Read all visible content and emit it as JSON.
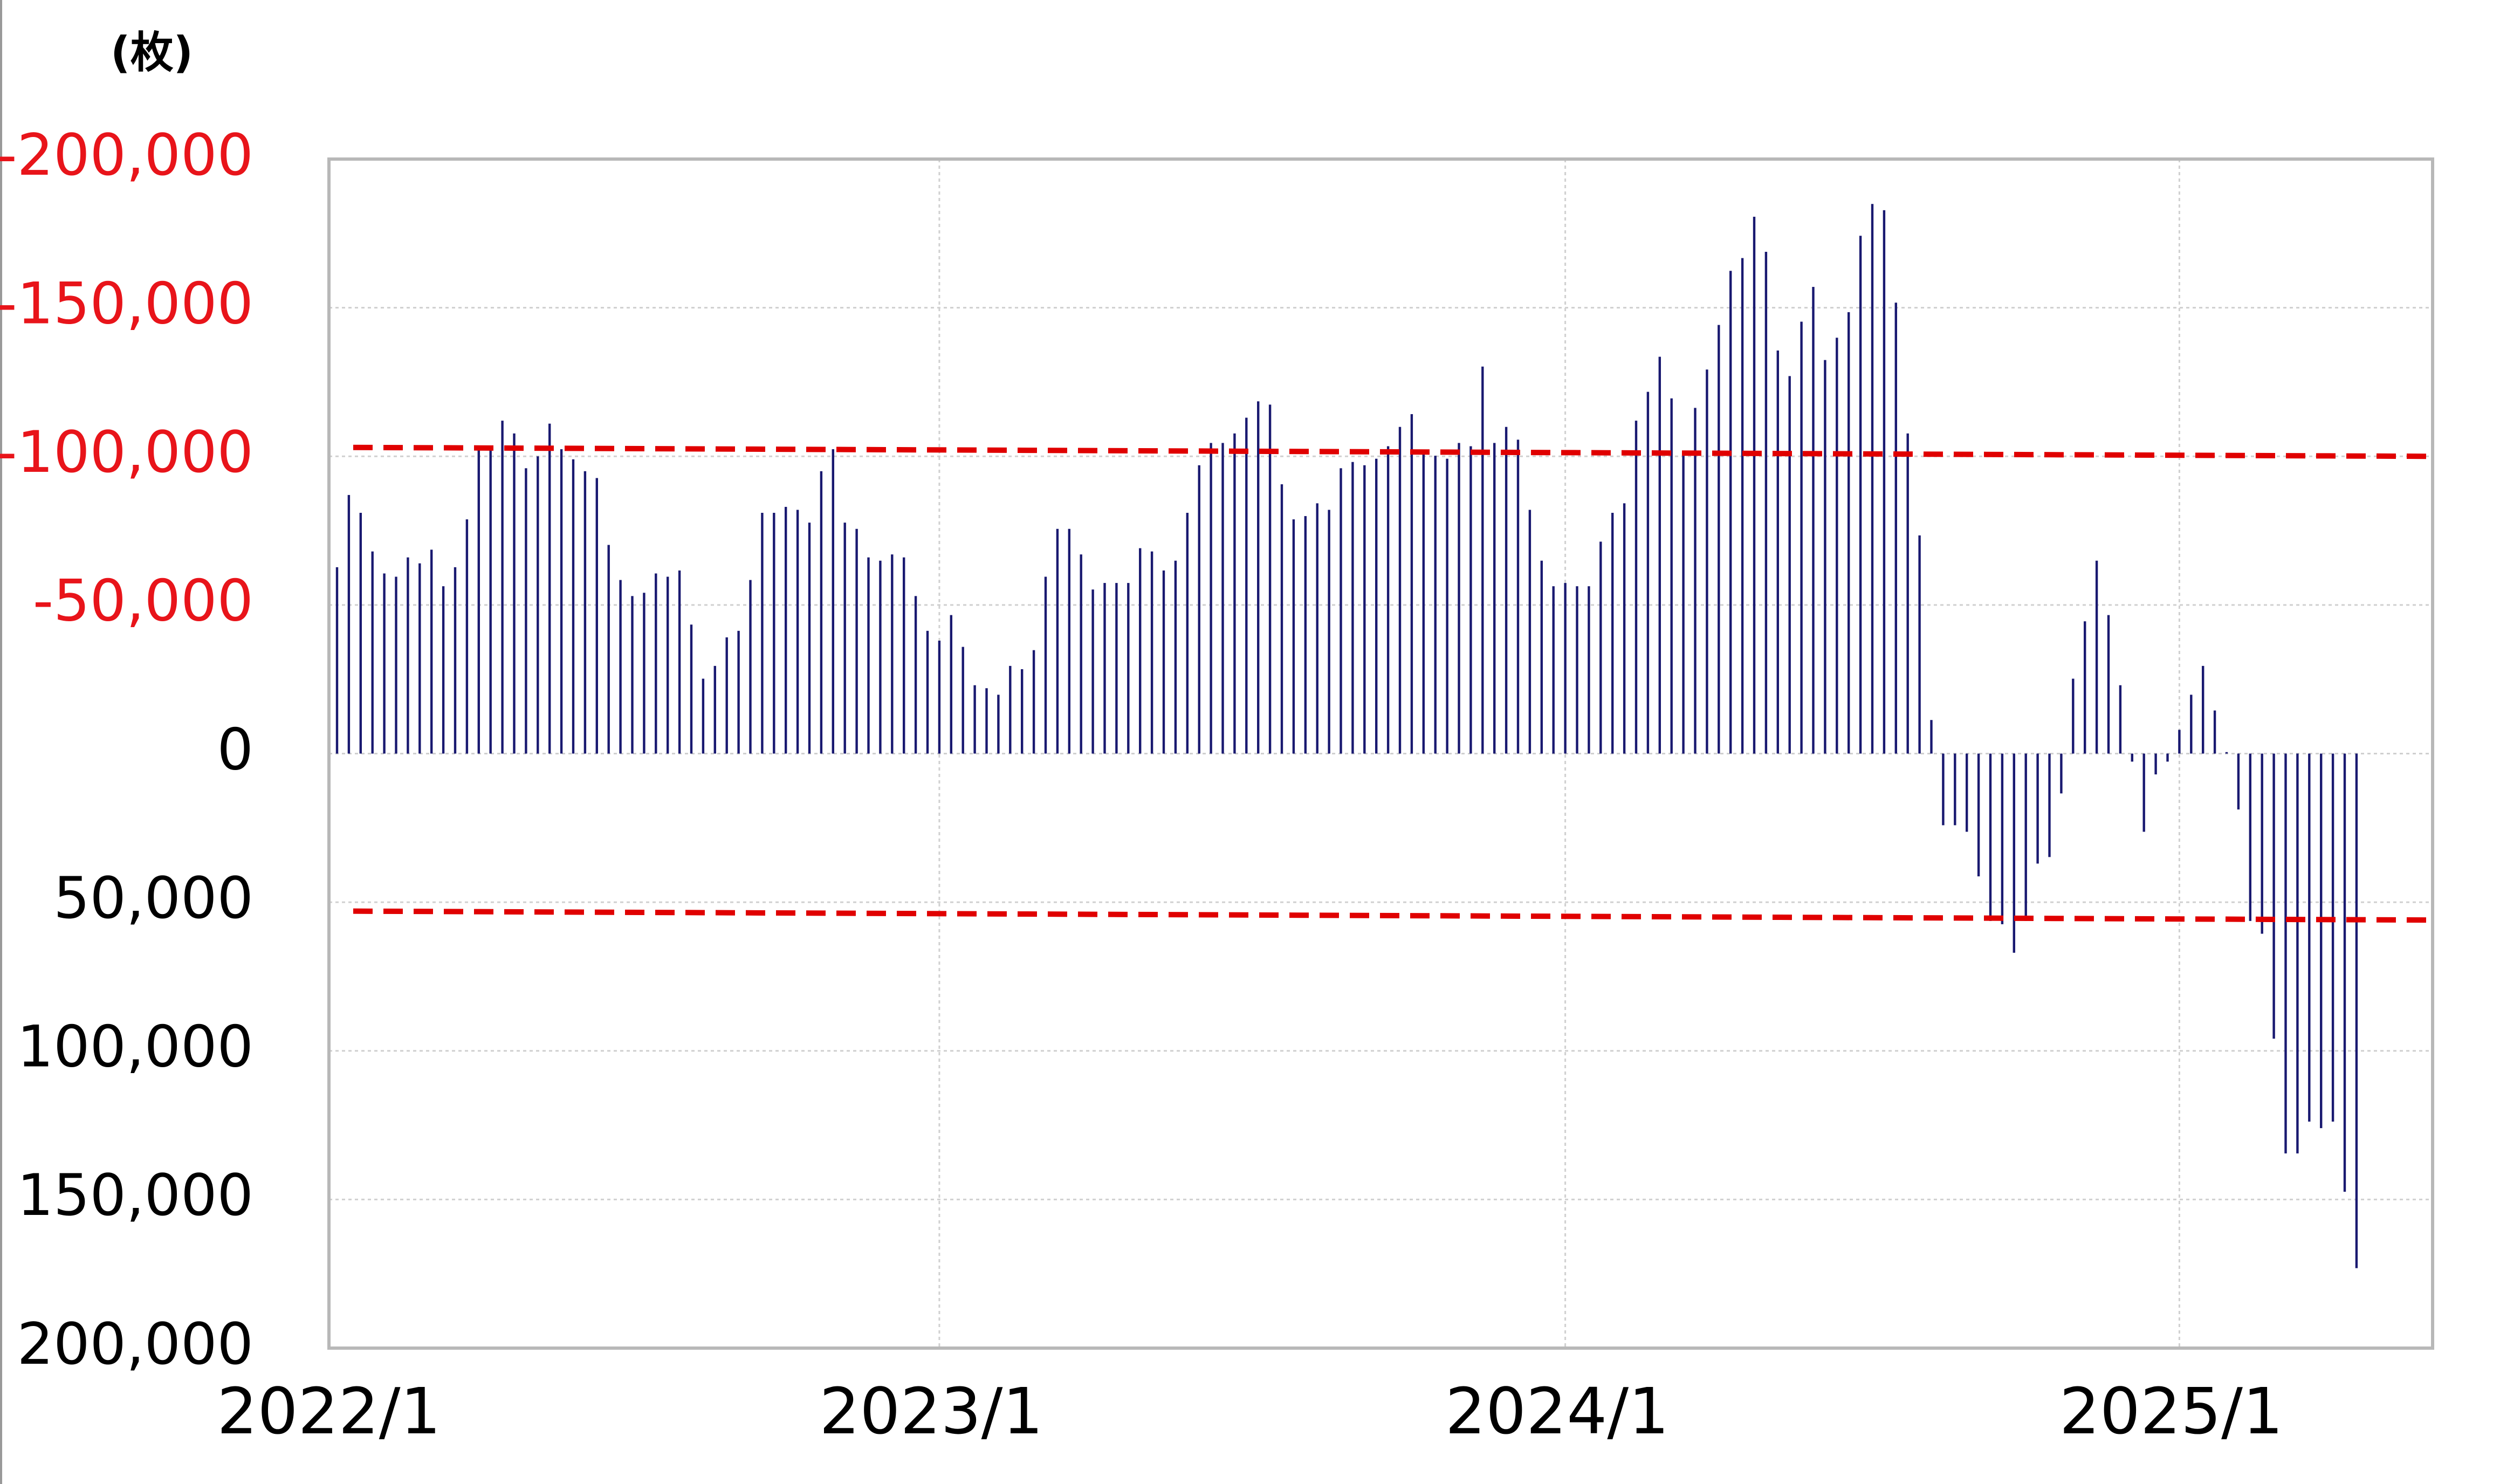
{
  "chart_data": {
    "type": "bar",
    "y_label": "(枚)",
    "color": "#191970",
    "grid": true,
    "label_color": "#000000",
    "negative_label_color": "#e8141a",
    "ylim": [
      -200000,
      200000
    ],
    "yticks": [
      {
        "value": -200000,
        "label": "-200,000"
      },
      {
        "value": -150000,
        "label": "-150,000"
      },
      {
        "value": -100000,
        "label": "-100,000"
      },
      {
        "value": -50000,
        "label": "-50,000"
      },
      0,
      {
        "value": 50000,
        "label": "50,000"
      },
      {
        "value": 100000,
        "label": "100,000"
      },
      {
        "value": 150000,
        "label": "150,000"
      },
      {
        "value": 200000,
        "label": "200,000"
      }
    ],
    "categories": [
      "2022/1",
      null,
      null,
      null,
      null,
      null,
      null,
      null,
      null,
      null,
      null,
      null,
      null,
      null,
      null,
      null,
      null,
      null,
      null,
      null,
      null,
      null,
      null,
      null,
      null,
      null,
      null,
      null,
      null,
      null,
      null,
      null,
      null,
      null,
      null,
      null,
      null,
      null,
      null,
      null,
      null,
      null,
      null,
      null,
      null,
      null,
      null,
      null,
      null,
      null,
      null,
      "2023/1",
      null,
      null,
      null,
      null,
      null,
      null,
      null,
      null,
      null,
      null,
      null,
      null,
      null,
      null,
      null,
      null,
      null,
      null,
      null,
      null,
      null,
      null,
      null,
      null,
      null,
      null,
      null,
      null,
      null,
      null,
      null,
      null,
      null,
      null,
      null,
      null,
      null,
      null,
      null,
      null,
      null,
      null,
      null,
      null,
      null,
      null,
      null,
      null,
      null,
      null,
      null,
      null,
      "2024/1",
      null,
      null,
      null,
      null,
      null,
      null,
      null,
      null,
      null,
      null,
      null,
      null,
      null,
      null,
      null,
      null,
      null,
      null,
      null,
      null,
      null,
      null,
      null,
      null,
      null,
      null,
      null,
      null,
      null,
      null,
      null,
      null,
      null,
      null,
      null,
      null,
      null,
      null,
      null,
      null,
      null,
      null,
      null,
      null,
      null,
      null,
      null,
      null,
      null,
      null,
      null,
      "2025/1",
      null,
      null,
      null,
      null,
      null,
      null,
      null,
      null,
      null,
      null,
      null,
      null,
      null,
      null,
      null
    ],
    "values": [
      -62700,
      -87000,
      -81000,
      -68000,
      -60600,
      -59500,
      -66000,
      -64000,
      -68600,
      -56300,
      -62700,
      -78800,
      -103400,
      -102400,
      -112000,
      -107700,
      -96000,
      -100000,
      -111000,
      -102400,
      -99000,
      -95000,
      -92700,
      -70200,
      -58400,
      -53000,
      -54100,
      -60600,
      -59500,
      -61600,
      -43400,
      -25200,
      -29500,
      -39100,
      -41300,
      -58400,
      -81000,
      -81000,
      -83000,
      -82000,
      -77700,
      -95000,
      -102400,
      -77700,
      -75600,
      -66000,
      -64900,
      -67000,
      -66000,
      -53000,
      -41300,
      -38000,
      -46600,
      -35900,
      -23000,
      -22000,
      -19800,
      -29500,
      -28400,
      -34800,
      -59500,
      -75600,
      -75600,
      -67000,
      -55200,
      -57400,
      -57400,
      -57400,
      -69100,
      -68000,
      -61600,
      -64900,
      -81000,
      -97000,
      -104500,
      -104500,
      -107700,
      -113000,
      -118500,
      -117400,
      -90600,
      -78800,
      -79900,
      -84200,
      -82000,
      -96000,
      -98100,
      -97000,
      -99200,
      -103400,
      -109900,
      -114200,
      -101300,
      -100200,
      -99200,
      -104500,
      -103400,
      -130200,
      -104500,
      -109900,
      -105600,
      -82000,
      -64900,
      -56300,
      -57400,
      -56300,
      -56300,
      -71300,
      -81000,
      -84200,
      -112000,
      -121700,
      -133500,
      -119500,
      -100200,
      -116300,
      -129200,
      -144200,
      -162400,
      -166700,
      -180600,
      -168800,
      -135600,
      -127000,
      -145300,
      -157000,
      -132400,
      -139900,
      -148500,
      -174200,
      -184900,
      -182800,
      -151700,
      -107700,
      -73400,
      -11300,
      24100,
      24100,
      26300,
      41300,
      56300,
      57400,
      67000,
      56300,
      37000,
      34800,
      13400,
      -25200,
      -44500,
      -64900,
      -46600,
      -23000,
      2700,
      26300,
      7000,
      2700,
      -8000,
      -19800,
      -29500,
      -14500,
      -500,
      18800,
      56300,
      60600,
      95900,
      134500,
      134500,
      123800,
      126000,
      123800,
      147400,
      173100
    ],
    "reference_lines": [
      {
        "color": "#e00000",
        "values": [
          -103000,
          -100000
        ]
      },
      {
        "color": "#e00000",
        "values": [
          53000,
          56000
        ]
      }
    ]
  }
}
